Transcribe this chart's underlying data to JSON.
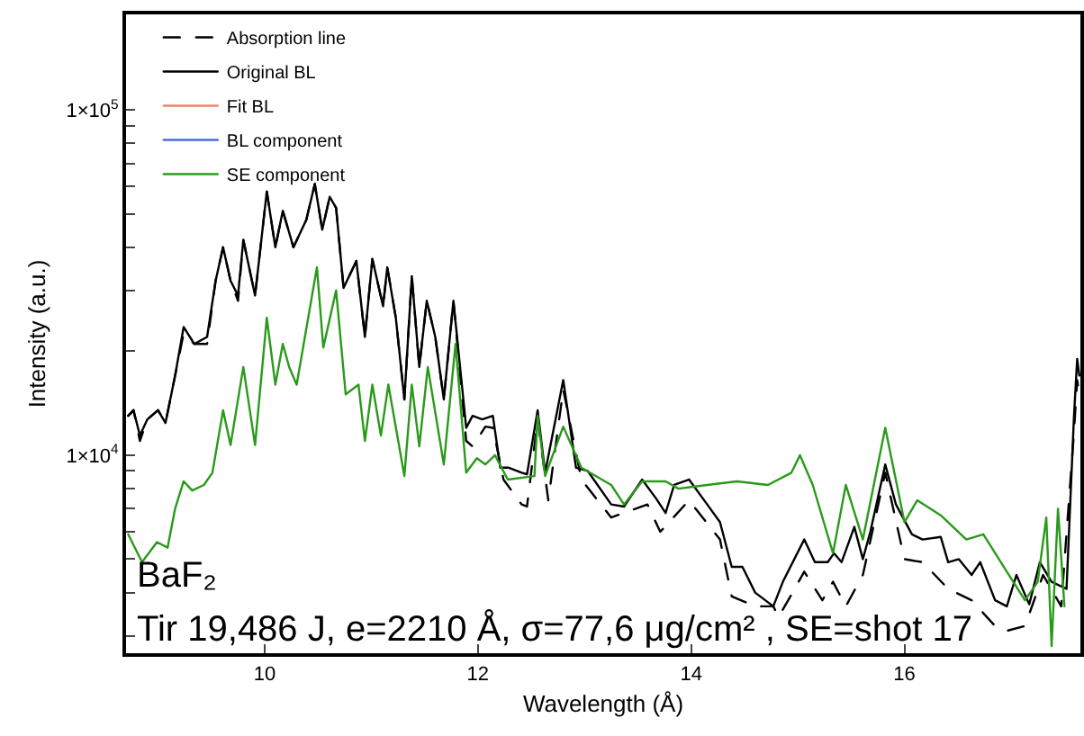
{
  "chart_data": {
    "type": "line",
    "xlabel": "Wavelength (Å)",
    "ylabel": "Intensity (a.u.)",
    "xlim": [
      8.7,
      17.65
    ],
    "xticks": [
      10,
      12,
      14,
      16
    ],
    "ylim": [
      2670,
      189000
    ],
    "yticks": [
      {
        "value": 3000,
        "label": null
      },
      {
        "value": 4000,
        "label": null
      },
      {
        "value": 5000,
        "label": null
      },
      {
        "value": 6000,
        "label": null
      },
      {
        "value": 7000,
        "label": null
      },
      {
        "value": 8000,
        "label": null
      },
      {
        "value": 9000,
        "label": null
      },
      {
        "value": 10000,
        "label": "1×10$^{4}$"
      },
      {
        "value": 20000,
        "label": null
      },
      {
        "value": 30000,
        "label": null
      },
      {
        "value": 40000,
        "label": null
      },
      {
        "value": 50000,
        "label": null
      },
      {
        "value": 60000,
        "label": null
      },
      {
        "value": 70000,
        "label": null
      },
      {
        "value": 80000,
        "label": null
      },
      {
        "value": 90000,
        "label": null
      },
      {
        "value": 100000,
        "label": "1×10$^{5}$"
      }
    ],
    "log": "y",
    "grid": false,
    "legend": "top left",
    "marker": "none",
    "series": [
      {
        "name": "Absorption line",
        "color": "#000000",
        "line_style": "dashed",
        "x": [
          8.72,
          8.77,
          8.83,
          8.9,
          9.0,
          9.07,
          9.16,
          9.24,
          9.34,
          9.46,
          9.54,
          9.61,
          9.68,
          9.75,
          9.8,
          9.91,
          10.02,
          10.1,
          10.17,
          10.27,
          10.39,
          10.47,
          10.54,
          10.61,
          10.67,
          10.74,
          10.86,
          10.94,
          11.01,
          11.11,
          11.15,
          11.23,
          11.31,
          11.38,
          11.45,
          11.52,
          11.6,
          11.68,
          11.77,
          11.89,
          11.95,
          12.07,
          12.14,
          12.24,
          12.41,
          12.46,
          12.56,
          12.66,
          12.8,
          12.97,
          13.25,
          13.59,
          13.71,
          13.98,
          14.27,
          14.38,
          14.6,
          14.77,
          14.82,
          14.97,
          15.06,
          15.23,
          15.33,
          15.45,
          15.61,
          15.82,
          16.0,
          16.17,
          16.41,
          16.63,
          16.85,
          16.96,
          17.13,
          17.3,
          17.47,
          17.59,
          17.62,
          17.64
        ],
        "values": [
          13000,
          13500,
          11000,
          12700,
          13500,
          12400,
          17000,
          22500,
          21000,
          21000,
          32000,
          40000,
          32000,
          28000,
          42000,
          29000,
          58000,
          40000,
          51000,
          40000,
          48000,
          61000,
          45000,
          56000,
          52000,
          30500,
          36500,
          22000,
          37000,
          27000,
          35000,
          25000,
          14500,
          33000,
          18000,
          28000,
          22000,
          14500,
          28000,
          11000,
          10600,
          12100,
          12000,
          8500,
          7200,
          7100,
          12700,
          7400,
          15500,
          8500,
          6600,
          7200,
          6000,
          7400,
          5700,
          3900,
          3650,
          3650,
          3400,
          4100,
          4600,
          3800,
          4300,
          3650,
          4500,
          8900,
          5000,
          4900,
          4100,
          3800,
          3200,
          3100,
          3200,
          4500,
          3650,
          11700,
          16500,
          15000
        ]
      },
      {
        "name": "Original BL",
        "color": "#000000",
        "line_style": "solid",
        "x": [
          8.72,
          8.77,
          8.83,
          8.9,
          9.0,
          9.07,
          9.16,
          9.24,
          9.34,
          9.46,
          9.54,
          9.61,
          9.68,
          9.75,
          9.8,
          9.91,
          10.02,
          10.1,
          10.17,
          10.27,
          10.39,
          10.47,
          10.54,
          10.61,
          10.67,
          10.74,
          10.86,
          10.94,
          11.01,
          11.11,
          11.15,
          11.23,
          11.31,
          11.38,
          11.45,
          11.52,
          11.6,
          11.68,
          11.77,
          11.89,
          11.95,
          12.04,
          12.14,
          12.21,
          12.29,
          12.41,
          12.46,
          12.56,
          12.63,
          12.8,
          12.92,
          13.03,
          13.25,
          13.37,
          13.54,
          13.67,
          13.76,
          13.84,
          13.98,
          14.15,
          14.27,
          14.38,
          14.48,
          14.6,
          14.77,
          14.86,
          15.06,
          15.16,
          15.28,
          15.34,
          15.41,
          15.53,
          15.61,
          15.68,
          15.82,
          15.92,
          16.07,
          16.17,
          16.34,
          16.41,
          16.51,
          16.63,
          16.71,
          16.85,
          16.96,
          17.05,
          17.17,
          17.27,
          17.38,
          17.52,
          17.59,
          17.62,
          17.64
        ],
        "values": [
          13000,
          13500,
          11400,
          12700,
          13500,
          12400,
          17000,
          23500,
          21000,
          22000,
          32000,
          40000,
          32000,
          29000,
          42000,
          29000,
          58000,
          40000,
          51000,
          40000,
          48000,
          61000,
          45000,
          56000,
          52000,
          30500,
          36500,
          22000,
          37000,
          27000,
          35000,
          25000,
          14500,
          33000,
          18000,
          28000,
          22000,
          14500,
          28000,
          12000,
          13000,
          12700,
          13000,
          9200,
          9200,
          8900,
          8800,
          13500,
          8900,
          16500,
          9200,
          9000,
          7200,
          7100,
          8500,
          7500,
          6800,
          8200,
          8500,
          7200,
          6400,
          4750,
          4750,
          4000,
          3650,
          4300,
          5700,
          4900,
          4900,
          5200,
          4900,
          6200,
          5000,
          6000,
          9400,
          7200,
          5900,
          5700,
          5800,
          4900,
          5000,
          4500,
          4900,
          3800,
          3650,
          4500,
          3700,
          4900,
          4300,
          4100,
          13000,
          19000,
          17000
        ]
      },
      {
        "name": "Fit BL",
        "color": "#f4846c",
        "line_style": "solid"
      },
      {
        "name": "BL component",
        "color": "#4a6ee0",
        "line_style": "solid"
      },
      {
        "name": "SE component",
        "color": "#2a9a1a",
        "line_style": "solid",
        "x": [
          8.72,
          8.85,
          8.99,
          9.09,
          9.16,
          9.24,
          9.32,
          9.43,
          9.51,
          9.61,
          9.68,
          9.8,
          9.91,
          10.02,
          10.1,
          10.17,
          10.23,
          10.3,
          10.49,
          10.55,
          10.67,
          10.76,
          10.88,
          10.94,
          11.01,
          11.09,
          11.16,
          11.31,
          11.38,
          11.45,
          11.53,
          11.68,
          11.79,
          11.89,
          11.99,
          12.07,
          12.16,
          12.28,
          12.53,
          12.56,
          12.63,
          12.8,
          12.97,
          13.25,
          13.37,
          13.54,
          13.76,
          13.88,
          14.15,
          14.43,
          14.72,
          14.94,
          15.02,
          15.14,
          15.33,
          15.45,
          15.61,
          15.82,
          16.0,
          16.12,
          16.34,
          16.58,
          16.74,
          16.96,
          17.13,
          17.25,
          17.33,
          17.38,
          17.44,
          17.5
        ],
        "values": [
          5900,
          4900,
          5600,
          5400,
          7000,
          8400,
          7900,
          8200,
          8900,
          13500,
          10700,
          18000,
          10700,
          25000,
          16000,
          21000,
          18000,
          16000,
          35000,
          20500,
          30000,
          15000,
          16000,
          11000,
          16000,
          11400,
          16000,
          8700,
          16000,
          10600,
          18000,
          9400,
          21000,
          8900,
          9800,
          9400,
          10000,
          8500,
          8700,
          13000,
          8700,
          12100,
          9200,
          8200,
          7200,
          8400,
          8400,
          8000,
          8200,
          8400,
          8200,
          8900,
          10000,
          8200,
          5200,
          8200,
          5700,
          12000,
          6400,
          7400,
          6700,
          5700,
          5900,
          4600,
          3800,
          4300,
          6600,
          2800,
          7000,
          3650
        ]
      }
    ],
    "annotations": [
      "BaF₂",
      "Tir 19,486 J, e=2210 Å, σ=77,6 μg/cm² , SE=shot 17"
    ]
  }
}
